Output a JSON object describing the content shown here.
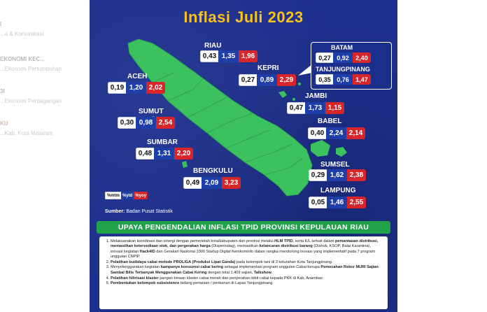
{
  "left_pane": {
    "lines": [
      {
        "text": "I",
        "style": "strong"
      },
      {
        "text": "...a & Komunikasi",
        "style": ""
      },
      {
        "text": "EKONOMI KEC...",
        "style": "strong"
      },
      {
        "text": "...Ekonomi Pertumbuhan",
        "style": ""
      },
      {
        "text": "3I",
        "style": "strong"
      },
      {
        "text": "...Ekonomi Perdagangan",
        "style": ""
      },
      {
        "text": "KU",
        "style": "red"
      },
      {
        "text": "...Kab. Kota Mataram",
        "style": ""
      }
    ]
  },
  "poster": {
    "title": "Inflasi Juli 2023",
    "colors": {
      "background": "#1d2f8c",
      "title": "#f7c21a",
      "map": "#3bc25f",
      "mtm": "#ffffff",
      "ytd": "#1f3fa8",
      "yoy": "#d6262c",
      "banner": "#20a14a"
    },
    "regions": [
      {
        "name": "RIAU",
        "mtm": "0,43",
        "ytd": "1,35",
        "yoy": "1,96"
      },
      {
        "name": "ACEH",
        "mtm": "0,19",
        "ytd": "1,20",
        "yoy": "2,02"
      },
      {
        "name": "KEPRI",
        "mtm": "0,27",
        "ytd": "0,89",
        "yoy": "2,29"
      },
      {
        "name": "BATAM",
        "mtm": "0,27",
        "ytd": "0,92",
        "yoy": "2,40"
      },
      {
        "name": "TANJUNGPINANG",
        "mtm": "0,35",
        "ytd": "0,76",
        "yoy": "1,47"
      },
      {
        "name": "JAMBI",
        "mtm": "0,47",
        "ytd": "1,73",
        "yoy": "1,15"
      },
      {
        "name": "SUMUT",
        "mtm": "0,30",
        "ytd": "0,98",
        "yoy": "2,54"
      },
      {
        "name": "BABEL",
        "mtm": "0,40",
        "ytd": "2,24",
        "yoy": "2,14"
      },
      {
        "name": "SUMBAR",
        "mtm": "0,48",
        "ytd": "1,31",
        "yoy": "2,20"
      },
      {
        "name": "BENGKULU",
        "mtm": "0,49",
        "ytd": "2,09",
        "yoy": "3,23"
      },
      {
        "name": "SUMSEL",
        "mtm": "0,29",
        "ytd": "1,62",
        "yoy": "2,38"
      },
      {
        "name": "LAMPUNG",
        "mtm": "0,05",
        "ytd": "1,46",
        "yoy": "2,55"
      }
    ],
    "legend": {
      "mtm": "%mtm",
      "ytd": "%ytd",
      "yoy": "%yoy"
    },
    "source_label": "Sumber:",
    "source_value": "Badan Pusat Statistik",
    "banner": "UPAYA PENGENDALIAN INFLASI TPID PROVINSI KEPULAUAN RIAU",
    "points": [
      {
        "parts": [
          {
            "t": "Melaksanakan koordinasi dan sinergi dengan pemerintah kota/kabupaten dan provinsi melalui ",
            "b": false
          },
          {
            "t": "HLM TPID",
            "b": true
          },
          {
            "t": ", serta K/L terkait dalam ",
            "b": false
          },
          {
            "t": "pemantauan distribusi, memastikan ketersediaan stok, dan pergerakan harga",
            "b": true
          },
          {
            "t": " (Disperindag), memastikan ",
            "b": false
          },
          {
            "t": "kelancaran distribusi barang",
            "b": true
          },
          {
            "t": " (Dishub, KSOP, Balai Karantina), inovasi kegiatan ",
            "b": false
          },
          {
            "t": "Hack4ID",
            "b": true
          },
          {
            "t": " dan Gerakan Nasional 1000 Startup Digital Kemkominfo dalam rangka mendorong inovasi yang implementatif pada 7 program unggulan ",
            "b": false
          },
          {
            "t": "CNPIP",
            "b": false
          },
          {
            "t": ".",
            "b": false
          }
        ]
      },
      {
        "parts": [
          {
            "t": "Pelatihan budidaya cabai metode PROLIGA (Produksi Lipat Ganda)",
            "b": true
          },
          {
            "t": " pada kelompok tani di 3 kelurahan Kota Tanjungpinang.",
            "b": false
          }
        ]
      },
      {
        "parts": [
          {
            "t": "Menyelenggarakan kegiatan ",
            "b": false
          },
          {
            "t": "kampanye konsumsi cabai kering",
            "b": true
          },
          {
            "t": " sebagai implementasi program unggulan Cabai berupa ",
            "b": false
          },
          {
            "t": "Pemecahan Rekor MURI Sajian Sambal Bilis Terbanyak Menggunakan Cabai Kering",
            "b": true
          },
          {
            "t": " dengan total 1.409 sajian, ",
            "b": false
          },
          {
            "t": "Talkshow",
            "b": true
          },
          {
            "t": ".",
            "b": false
          }
        ]
      },
      {
        "parts": [
          {
            "t": "Pelatihan hilirisasi klaster",
            "b": true
          },
          {
            "t": " pangan binaan klaster cabai merah dan penyerahan bibit cabai kepada PKK di Kab. Anambas",
            "b": false
          }
        ]
      },
      {
        "parts": [
          {
            "t": "Pembentukan kelompok subsistence",
            "b": true
          },
          {
            "t": " bidang pertanian / perikanan di Lapas Tanjungpinang.",
            "b": false
          }
        ]
      }
    ]
  }
}
